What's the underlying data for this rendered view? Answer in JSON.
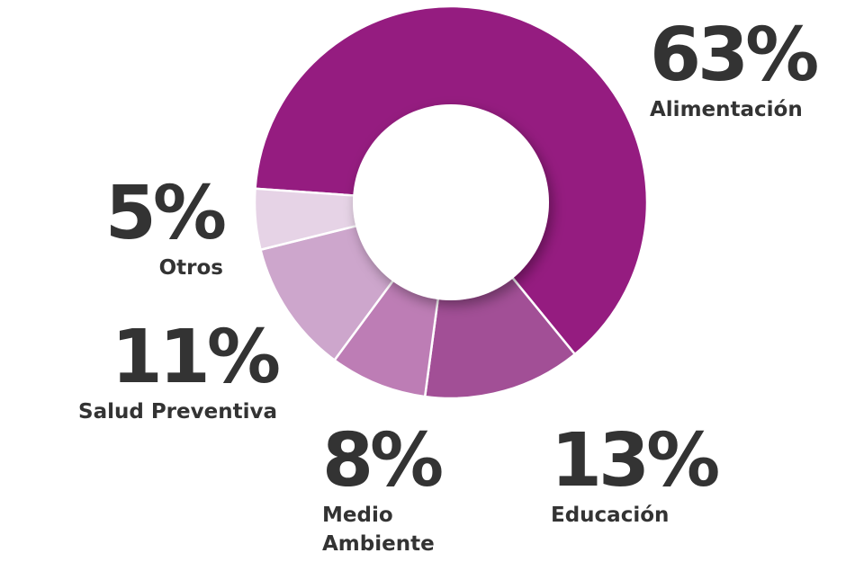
{
  "chart_data": {
    "type": "donut",
    "categories": [
      "Alimentación",
      "Educación",
      "Medio Ambiente",
      "Salud Preventiva",
      "Otros"
    ],
    "values": [
      63,
      13,
      8,
      11,
      5
    ],
    "value_labels": [
      "63%",
      "13%",
      "8%",
      "11%",
      "5%"
    ],
    "colors": [
      "#951c80",
      "#a24f96",
      "#bd7db5",
      "#cda6cc",
      "#e6d3e6"
    ]
  }
}
